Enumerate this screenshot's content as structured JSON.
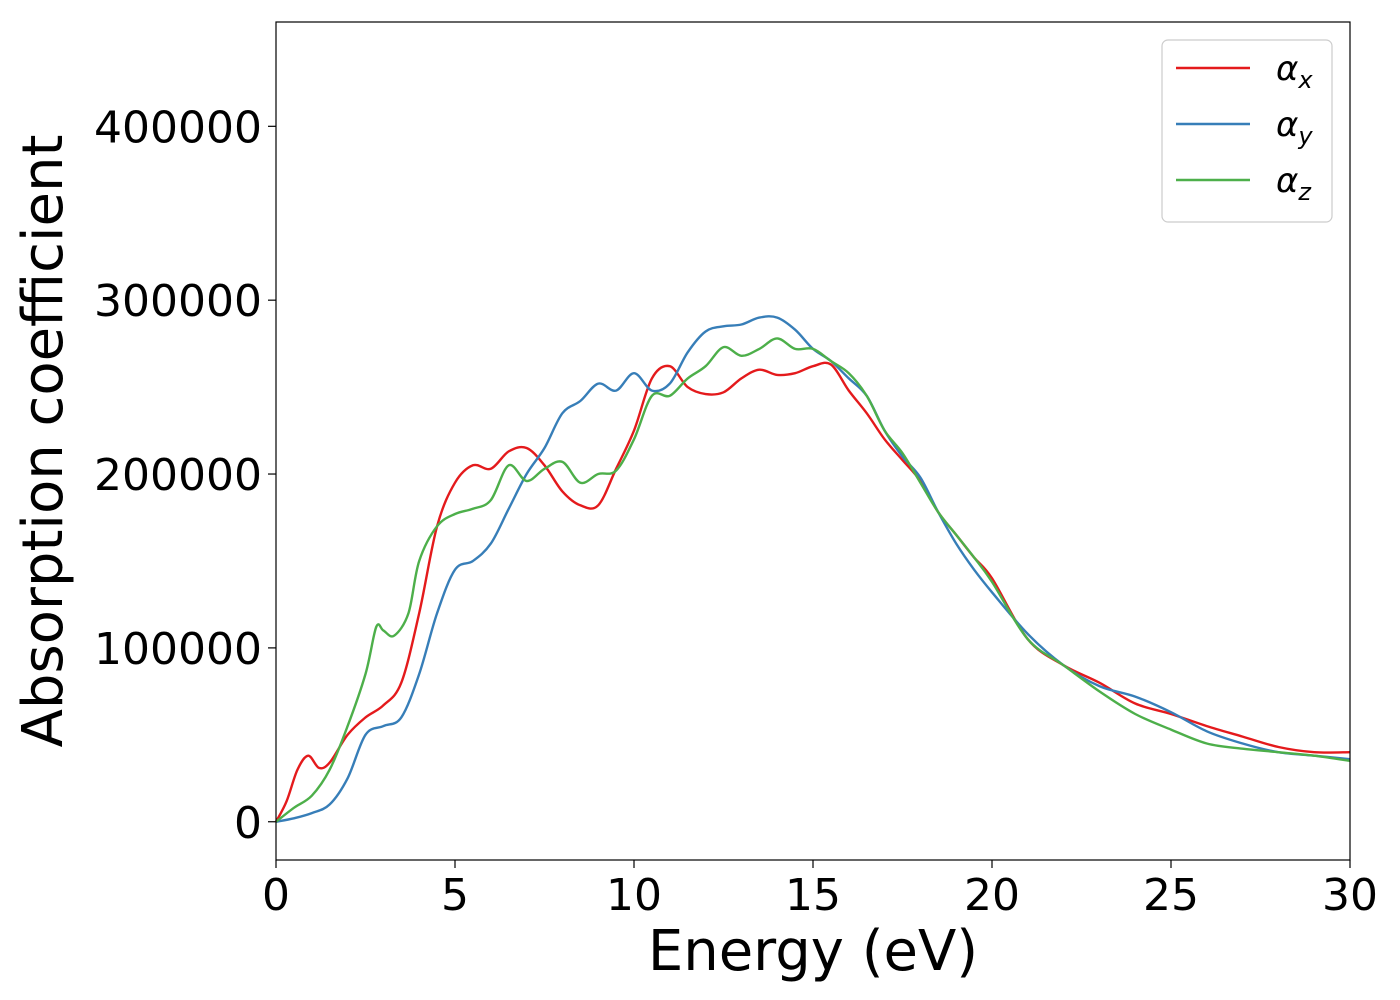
{
  "chart_data": {
    "type": "line",
    "title": "",
    "xlabel": "Energy (eV)",
    "ylabel": "Absorption coefficient",
    "xlim": [
      0,
      30
    ],
    "ylim": [
      -22000,
      460000
    ],
    "xticks": [
      0,
      5,
      10,
      15,
      20,
      25,
      30
    ],
    "yticks": [
      0,
      100000,
      200000,
      300000,
      400000
    ],
    "grid": false,
    "legend_position": "top-right",
    "series": [
      {
        "name": "α_x",
        "symbol": "α",
        "subscript": "x",
        "color": "#e41a1c",
        "x": [
          0,
          0.3,
          0.6,
          0.9,
          1.2,
          1.5,
          2.0,
          2.5,
          3.0,
          3.5,
          4.0,
          4.5,
          5.0,
          5.5,
          6.0,
          6.5,
          7.0,
          7.5,
          8.0,
          8.5,
          9.0,
          9.5,
          10.0,
          10.5,
          11.0,
          11.5,
          12.0,
          12.5,
          13.0,
          13.5,
          14.0,
          14.5,
          15.0,
          15.5,
          16.0,
          16.5,
          17.0,
          17.5,
          18.0,
          18.5,
          19.0,
          19.5,
          20.0,
          21.0,
          22.0,
          23.0,
          24.0,
          25.0,
          26.0,
          27.0,
          28.0,
          29.0,
          30.0
        ],
        "y": [
          0,
          12000,
          30000,
          38000,
          31000,
          34000,
          50000,
          60000,
          67000,
          80000,
          120000,
          170000,
          195000,
          205000,
          203000,
          213000,
          215000,
          205000,
          190000,
          182000,
          182000,
          203000,
          225000,
          255000,
          262000,
          250000,
          246000,
          247000,
          255000,
          260000,
          257000,
          258000,
          262000,
          263000,
          248000,
          235000,
          220000,
          208000,
          196000,
          178000,
          165000,
          152000,
          140000,
          105000,
          90000,
          80000,
          68000,
          62000,
          55000,
          49000,
          43000,
          40000,
          40000
        ]
      },
      {
        "name": "α_y",
        "symbol": "α",
        "subscript": "y",
        "color": "#377eb8",
        "x": [
          0,
          0.5,
          1.0,
          1.5,
          2.0,
          2.5,
          3.0,
          3.5,
          4.0,
          4.5,
          5.0,
          5.5,
          6.0,
          6.5,
          7.0,
          7.5,
          8.0,
          8.5,
          9.0,
          9.5,
          10.0,
          10.5,
          11.0,
          11.5,
          12.0,
          12.5,
          13.0,
          13.5,
          14.0,
          14.5,
          15.0,
          15.5,
          16.0,
          16.5,
          17.0,
          17.5,
          18.0,
          18.5,
          19.0,
          19.5,
          20.0,
          21.0,
          22.0,
          23.0,
          24.0,
          25.0,
          26.0,
          27.0,
          28.0,
          29.0,
          30.0
        ],
        "y": [
          0,
          2000,
          5000,
          10000,
          25000,
          50000,
          55000,
          60000,
          85000,
          120000,
          145000,
          150000,
          160000,
          180000,
          200000,
          215000,
          235000,
          242000,
          252000,
          248000,
          258000,
          248000,
          252000,
          270000,
          282000,
          285000,
          286000,
          290000,
          290000,
          283000,
          272000,
          265000,
          255000,
          245000,
          225000,
          210000,
          198000,
          178000,
          160000,
          145000,
          132000,
          108000,
          90000,
          78000,
          72000,
          63000,
          52000,
          45000,
          40000,
          38000,
          36000
        ]
      },
      {
        "name": "α_z",
        "symbol": "α",
        "subscript": "z",
        "color": "#4daf4a",
        "x": [
          0,
          0.5,
          1.0,
          1.5,
          2.0,
          2.5,
          2.8,
          3.0,
          3.3,
          3.7,
          4.0,
          4.5,
          5.0,
          5.5,
          6.0,
          6.5,
          7.0,
          7.5,
          8.0,
          8.5,
          9.0,
          9.5,
          10.0,
          10.5,
          11.0,
          11.5,
          12.0,
          12.5,
          13.0,
          13.5,
          14.0,
          14.5,
          15.0,
          15.5,
          16.0,
          16.5,
          17.0,
          17.5,
          18.0,
          18.5,
          19.0,
          19.5,
          20.0,
          21.0,
          22.0,
          23.0,
          24.0,
          25.0,
          26.0,
          27.0,
          28.0,
          29.0,
          30.0
        ],
        "y": [
          0,
          8000,
          15000,
          30000,
          55000,
          85000,
          112000,
          110000,
          107000,
          120000,
          150000,
          170000,
          177000,
          180000,
          185000,
          205000,
          196000,
          203000,
          207000,
          195000,
          200000,
          202000,
          220000,
          245000,
          245000,
          255000,
          262000,
          273000,
          268000,
          272000,
          278000,
          272000,
          272000,
          265000,
          258000,
          245000,
          225000,
          212000,
          195000,
          178000,
          165000,
          152000,
          138000,
          105000,
          90000,
          75000,
          62000,
          53000,
          45000,
          42000,
          40000,
          38000,
          35000
        ]
      }
    ]
  }
}
